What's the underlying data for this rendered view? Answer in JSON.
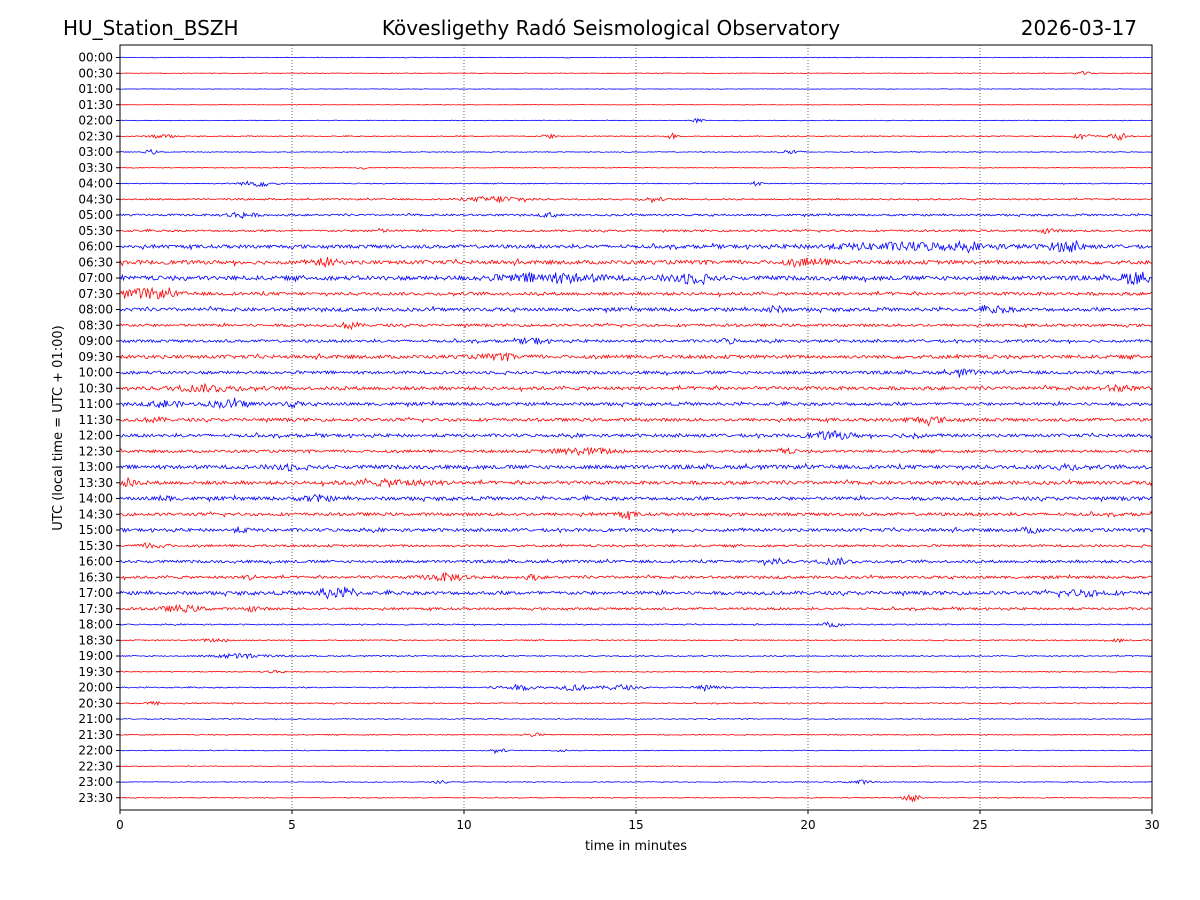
{
  "header": {
    "station": "HU_Station_BSZH",
    "observatory": "Kövesligethy Radó Seismological Observatory",
    "date": "2026-03-17"
  },
  "chart_data": {
    "type": "line",
    "title": "Kövesligethy Radó Seismological Observatory",
    "xlabel": "time in minutes",
    "ylabel": "UTC (local time = UTC + 01:00)",
    "xlim": [
      0,
      30
    ],
    "x_ticks": [
      0,
      5,
      10,
      15,
      20,
      25,
      30
    ],
    "x_tick_labels": [
      "0",
      "5",
      "10",
      "15",
      "20",
      "25",
      "30"
    ],
    "grid": "vertical dotted at x ticks",
    "colors": {
      "even_row": "#0000ff",
      "odd_row": "#ff0000"
    },
    "rows": [
      {
        "label": "00:00",
        "noise": 0.08,
        "events": []
      },
      {
        "label": "00:30",
        "noise": 0.08,
        "events": [
          [
            28.0,
            0.4,
            0.3
          ]
        ]
      },
      {
        "label": "01:00",
        "noise": 0.06,
        "events": []
      },
      {
        "label": "01:30",
        "noise": 0.06,
        "events": []
      },
      {
        "label": "02:00",
        "noise": 0.08,
        "events": [
          [
            16.8,
            0.5,
            0.2
          ]
        ]
      },
      {
        "label": "02:30",
        "noise": 0.12,
        "events": [
          [
            1.2,
            0.5,
            0.5
          ],
          [
            12.5,
            0.5,
            0.3
          ],
          [
            16.0,
            0.8,
            0.2
          ],
          [
            28.0,
            0.6,
            0.4
          ],
          [
            29.0,
            1.0,
            0.3
          ]
        ]
      },
      {
        "label": "03:00",
        "noise": 0.1,
        "events": [
          [
            0.9,
            0.6,
            0.2
          ],
          [
            19.5,
            0.6,
            0.4
          ]
        ]
      },
      {
        "label": "03:30",
        "noise": 0.08,
        "events": [
          [
            7.0,
            0.5,
            0.1
          ]
        ]
      },
      {
        "label": "04:00",
        "noise": 0.12,
        "events": [
          [
            4.0,
            0.7,
            0.8
          ],
          [
            18.5,
            0.5,
            0.2
          ]
        ]
      },
      {
        "label": "04:30",
        "noise": 0.2,
        "events": [
          [
            11.0,
            0.8,
            1.2
          ],
          [
            15.5,
            0.4,
            0.5
          ]
        ]
      },
      {
        "label": "05:00",
        "noise": 0.25,
        "events": [
          [
            3.5,
            0.7,
            0.6
          ],
          [
            12.5,
            0.5,
            0.3
          ]
        ]
      },
      {
        "label": "05:30",
        "noise": 0.25,
        "events": [
          [
            7.5,
            0.4,
            0.4
          ],
          [
            27.0,
            0.6,
            0.3
          ]
        ]
      },
      {
        "label": "06:00",
        "noise": 0.45,
        "events": [
          [
            23.0,
            0.8,
            4.0
          ],
          [
            27.5,
            1.0,
            0.8
          ]
        ]
      },
      {
        "label": "06:30",
        "noise": 0.5,
        "events": [
          [
            6.0,
            0.9,
            0.4
          ],
          [
            20.0,
            0.7,
            1.0
          ]
        ]
      },
      {
        "label": "07:00",
        "noise": 0.55,
        "events": [
          [
            12.5,
            1.0,
            2.5
          ],
          [
            16.5,
            1.1,
            1.0
          ],
          [
            29.5,
            1.5,
            0.6
          ]
        ]
      },
      {
        "label": "07:30",
        "noise": 0.4,
        "events": [
          [
            0.8,
            1.1,
            1.2
          ]
        ]
      },
      {
        "label": "08:00",
        "noise": 0.45,
        "events": [
          [
            19.0,
            0.7,
            0.4
          ],
          [
            25.5,
            0.7,
            0.6
          ]
        ]
      },
      {
        "label": "08:30",
        "noise": 0.35,
        "events": [
          [
            6.7,
            0.9,
            0.3
          ]
        ]
      },
      {
        "label": "09:00",
        "noise": 0.35,
        "events": [
          [
            12.0,
            0.7,
            0.5
          ],
          [
            17.7,
            0.6,
            0.3
          ]
        ]
      },
      {
        "label": "09:30",
        "noise": 0.45,
        "events": [
          [
            11.0,
            0.5,
            1.0
          ]
        ]
      },
      {
        "label": "10:00",
        "noise": 0.4,
        "events": [
          [
            24.5,
            0.6,
            0.5
          ]
        ]
      },
      {
        "label": "10:30",
        "noise": 0.45,
        "events": [
          [
            2.5,
            0.7,
            1.5
          ],
          [
            29.0,
            0.7,
            0.5
          ]
        ]
      },
      {
        "label": "11:00",
        "noise": 0.4,
        "events": [
          [
            1.3,
            0.8,
            0.6
          ],
          [
            3.2,
            0.8,
            1.0
          ],
          [
            5.0,
            0.6,
            0.3
          ]
        ]
      },
      {
        "label": "11:30",
        "noise": 0.4,
        "events": [
          [
            23.5,
            0.6,
            1.0
          ],
          [
            1.0,
            0.5,
            0.4
          ]
        ]
      },
      {
        "label": "12:00",
        "noise": 0.4,
        "events": [
          [
            20.7,
            0.8,
            1.0
          ],
          [
            23.0,
            0.6,
            0.4
          ]
        ]
      },
      {
        "label": "12:30",
        "noise": 0.35,
        "events": [
          [
            13.5,
            0.7,
            1.5
          ],
          [
            19.3,
            0.5,
            0.4
          ]
        ]
      },
      {
        "label": "13:00",
        "noise": 0.5,
        "events": [
          [
            4.8,
            0.7,
            0.6
          ],
          [
            27.5,
            0.7,
            0.4
          ]
        ]
      },
      {
        "label": "13:30",
        "noise": 0.45,
        "events": [
          [
            0.2,
            1.0,
            0.3
          ],
          [
            8.0,
            0.6,
            2.0
          ]
        ]
      },
      {
        "label": "14:00",
        "noise": 0.45,
        "events": [
          [
            5.7,
            0.7,
            0.6
          ],
          [
            1.3,
            0.5,
            0.3
          ]
        ]
      },
      {
        "label": "14:30",
        "noise": 0.4,
        "events": [
          [
            14.7,
            0.6,
            0.4
          ]
        ]
      },
      {
        "label": "15:00",
        "noise": 0.4,
        "events": [
          [
            26.5,
            0.6,
            0.4
          ],
          [
            3.5,
            0.5,
            0.3
          ]
        ]
      },
      {
        "label": "15:30",
        "noise": 0.3,
        "events": [
          [
            1.0,
            0.6,
            0.5
          ]
        ]
      },
      {
        "label": "16:00",
        "noise": 0.35,
        "events": [
          [
            19.0,
            0.6,
            0.5
          ],
          [
            20.8,
            0.7,
            0.6
          ]
        ]
      },
      {
        "label": "16:30",
        "noise": 0.35,
        "events": [
          [
            9.5,
            0.8,
            1.0
          ],
          [
            3.8,
            0.6,
            0.2
          ],
          [
            12.0,
            0.5,
            0.3
          ]
        ]
      },
      {
        "label": "17:00",
        "noise": 0.45,
        "events": [
          [
            6.1,
            1.2,
            0.5
          ],
          [
            6.7,
            0.9,
            0.3
          ],
          [
            28.0,
            0.6,
            1.2
          ]
        ]
      },
      {
        "label": "17:30",
        "noise": 0.3,
        "events": [
          [
            1.8,
            0.7,
            1.0
          ],
          [
            3.9,
            0.6,
            0.3
          ]
        ]
      },
      {
        "label": "18:00",
        "noise": 0.15,
        "events": [
          [
            20.7,
            0.6,
            0.4
          ]
        ]
      },
      {
        "label": "18:30",
        "noise": 0.15,
        "events": [
          [
            2.8,
            0.4,
            0.7
          ],
          [
            29.0,
            0.4,
            0.3
          ]
        ]
      },
      {
        "label": "19:00",
        "noise": 0.15,
        "events": [
          [
            3.5,
            0.6,
            1.2
          ]
        ]
      },
      {
        "label": "19:30",
        "noise": 0.12,
        "events": [
          [
            4.5,
            0.4,
            0.4
          ]
        ]
      },
      {
        "label": "20:00",
        "noise": 0.15,
        "events": [
          [
            11.5,
            0.6,
            1.0
          ],
          [
            13.2,
            0.8,
            0.6
          ],
          [
            14.5,
            0.7,
            0.7
          ],
          [
            17.0,
            0.5,
            0.6
          ]
        ]
      },
      {
        "label": "20:30",
        "noise": 0.15,
        "events": [
          [
            1.0,
            0.4,
            0.4
          ]
        ]
      },
      {
        "label": "21:00",
        "noise": 0.12,
        "events": []
      },
      {
        "label": "21:30",
        "noise": 0.12,
        "events": [
          [
            12.0,
            0.4,
            0.4
          ]
        ]
      },
      {
        "label": "22:00",
        "noise": 0.1,
        "events": [
          [
            11.0,
            0.5,
            0.3
          ],
          [
            12.8,
            0.4,
            0.2
          ]
        ]
      },
      {
        "label": "22:30",
        "noise": 0.08,
        "events": []
      },
      {
        "label": "23:00",
        "noise": 0.1,
        "events": [
          [
            9.3,
            0.4,
            0.2
          ],
          [
            21.5,
            0.5,
            0.5
          ]
        ]
      },
      {
        "label": "23:30",
        "noise": 0.1,
        "events": [
          [
            23.0,
            0.9,
            0.3
          ]
        ]
      }
    ]
  }
}
